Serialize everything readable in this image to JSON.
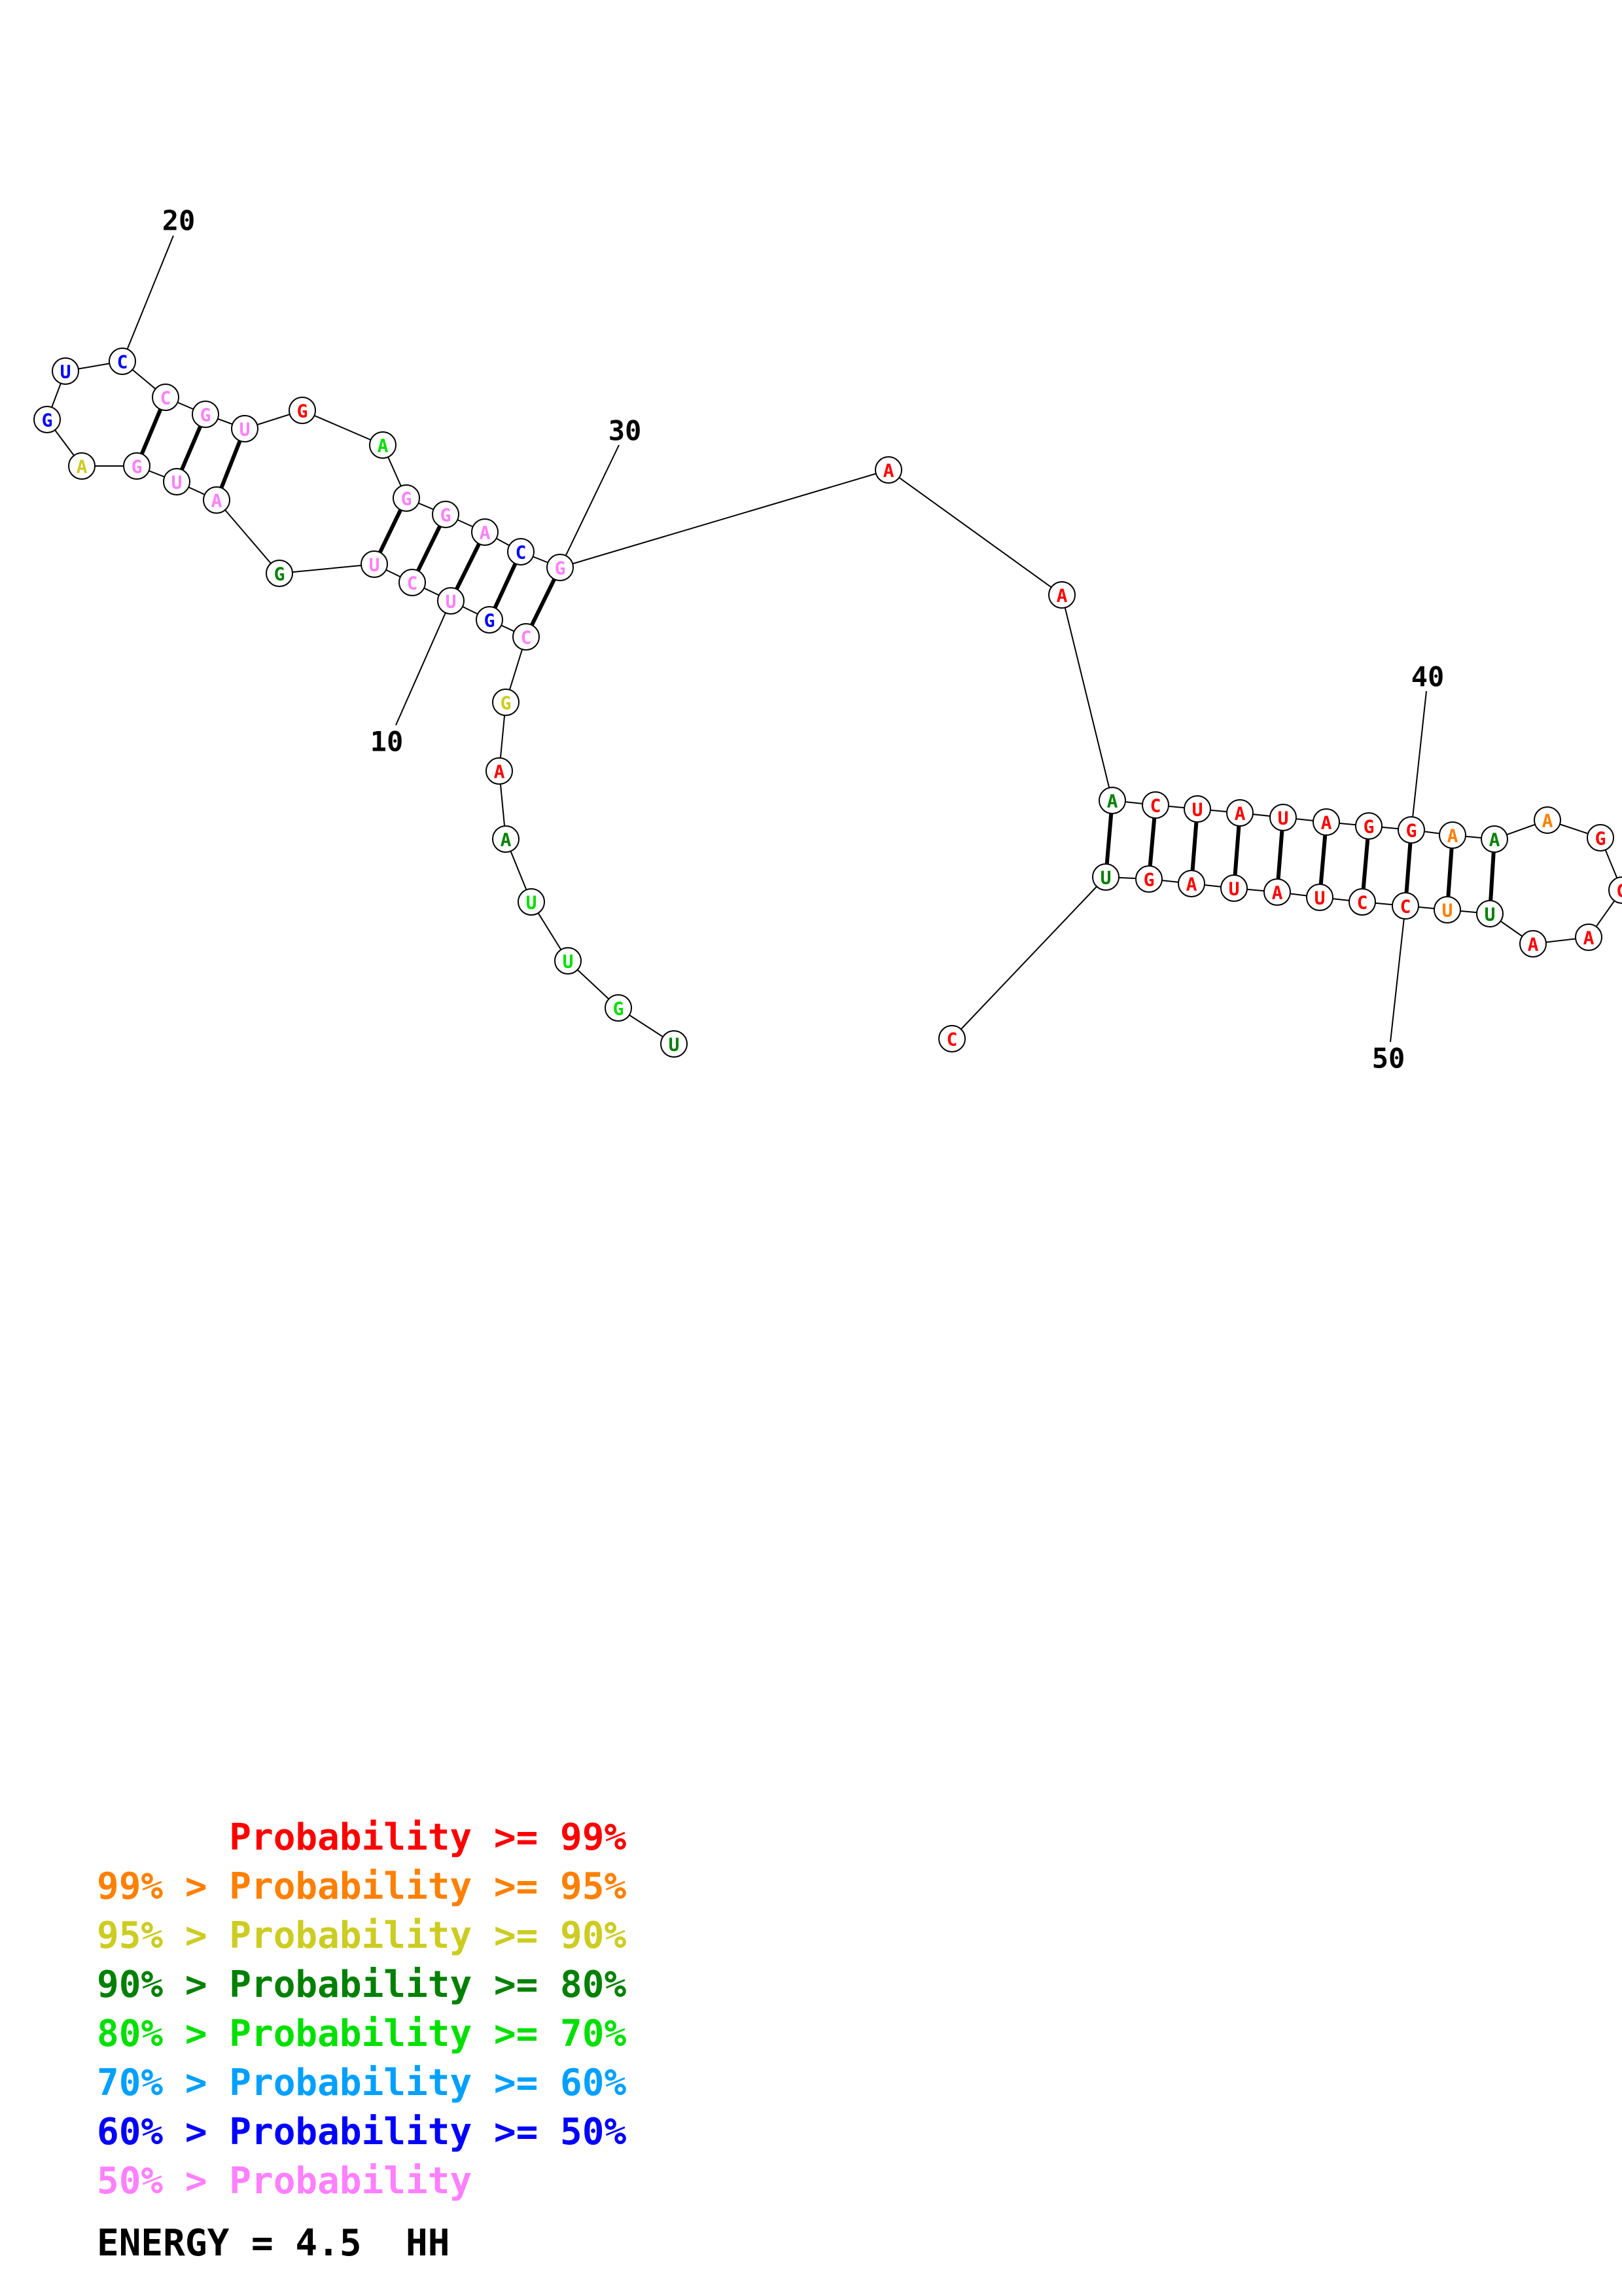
{
  "colors": {
    "red": "#ff0000",
    "orange": "#ff8000",
    "yellow": "#cccc22",
    "darkgreen": "#008000",
    "green": "#00e000",
    "cyan": "#00a0ff",
    "blue": "#0000ff",
    "pink": "#ff80ff"
  },
  "nucleotides": [
    {
      "n": 1,
      "base": "U",
      "color": "darkgreen"
    },
    {
      "n": 2,
      "base": "G",
      "color": "green"
    },
    {
      "n": 3,
      "base": "U",
      "color": "green"
    },
    {
      "n": 4,
      "base": "U",
      "color": "green"
    },
    {
      "n": 5,
      "base": "A",
      "color": "darkgreen"
    },
    {
      "n": 6,
      "base": "A",
      "color": "red"
    },
    {
      "n": 7,
      "base": "G",
      "color": "yellow"
    },
    {
      "n": 8,
      "base": "C",
      "color": "pink"
    },
    {
      "n": 9,
      "base": "G",
      "color": "blue"
    },
    {
      "n": 10,
      "base": "U",
      "color": "pink"
    },
    {
      "n": 11,
      "base": "C",
      "color": "pink"
    },
    {
      "n": 12,
      "base": "U",
      "color": "pink"
    },
    {
      "n": 13,
      "base": "G",
      "color": "darkgreen"
    },
    {
      "n": 14,
      "base": "A",
      "color": "pink"
    },
    {
      "n": 15,
      "base": "U",
      "color": "pink"
    },
    {
      "n": 16,
      "base": "G",
      "color": "pink"
    },
    {
      "n": 17,
      "base": "A",
      "color": "yellow"
    },
    {
      "n": 18,
      "base": "G",
      "color": "blue"
    },
    {
      "n": 19,
      "base": "U",
      "color": "blue"
    },
    {
      "n": 20,
      "base": "C",
      "color": "blue"
    },
    {
      "n": 21,
      "base": "C",
      "color": "pink"
    },
    {
      "n": 22,
      "base": "G",
      "color": "pink"
    },
    {
      "n": 23,
      "base": "U",
      "color": "pink"
    },
    {
      "n": 24,
      "base": "G",
      "color": "red"
    },
    {
      "n": 25,
      "base": "A",
      "color": "green"
    },
    {
      "n": 26,
      "base": "G",
      "color": "pink"
    },
    {
      "n": 27,
      "base": "G",
      "color": "pink"
    },
    {
      "n": 28,
      "base": "A",
      "color": "pink"
    },
    {
      "n": 29,
      "base": "C",
      "color": "blue"
    },
    {
      "n": 30,
      "base": "G",
      "color": "pink"
    },
    {
      "n": 31,
      "base": "A",
      "color": "red"
    },
    {
      "n": 32,
      "base": "A",
      "color": "red"
    },
    {
      "n": 33,
      "base": "A",
      "color": "darkgreen"
    },
    {
      "n": 34,
      "base": "C",
      "color": "red"
    },
    {
      "n": 35,
      "base": "U",
      "color": "red"
    },
    {
      "n": 36,
      "base": "A",
      "color": "red"
    },
    {
      "n": 37,
      "base": "U",
      "color": "red"
    },
    {
      "n": 38,
      "base": "A",
      "color": "red"
    },
    {
      "n": 39,
      "base": "G",
      "color": "red"
    },
    {
      "n": 40,
      "base": "G",
      "color": "red"
    },
    {
      "n": 41,
      "base": "A",
      "color": "orange"
    },
    {
      "n": 42,
      "base": "A",
      "color": "darkgreen"
    },
    {
      "n": 43,
      "base": "A",
      "color": "orange"
    },
    {
      "n": 44,
      "base": "G",
      "color": "red"
    },
    {
      "n": 45,
      "base": "G",
      "color": "red"
    },
    {
      "n": 46,
      "base": "A",
      "color": "red"
    },
    {
      "n": 47,
      "base": "A",
      "color": "red"
    },
    {
      "n": 48,
      "base": "U",
      "color": "darkgreen"
    },
    {
      "n": 49,
      "base": "U",
      "color": "orange"
    },
    {
      "n": 50,
      "base": "C",
      "color": "red"
    },
    {
      "n": 51,
      "base": "C",
      "color": "red"
    },
    {
      "n": 52,
      "base": "U",
      "color": "red"
    },
    {
      "n": 53,
      "base": "A",
      "color": "red"
    },
    {
      "n": 54,
      "base": "U",
      "color": "red"
    },
    {
      "n": 55,
      "base": "A",
      "color": "red"
    },
    {
      "n": 56,
      "base": "G",
      "color": "red"
    },
    {
      "n": 57,
      "base": "U",
      "color": "darkgreen"
    },
    {
      "n": 58,
      "base": "C",
      "color": "red"
    }
  ],
  "base_pairs": [
    [
      8,
      30
    ],
    [
      9,
      29
    ],
    [
      10,
      28
    ],
    [
      11,
      27
    ],
    [
      12,
      26
    ],
    [
      14,
      23
    ],
    [
      15,
      22
    ],
    [
      16,
      21
    ],
    [
      33,
      57
    ],
    [
      34,
      56
    ],
    [
      35,
      55
    ],
    [
      36,
      54
    ],
    [
      37,
      53
    ],
    [
      38,
      52
    ],
    [
      39,
      51
    ],
    [
      40,
      50
    ],
    [
      41,
      49
    ],
    [
      42,
      48
    ]
  ],
  "position_labels": [
    {
      "n": 10,
      "text": "10"
    },
    {
      "n": 20,
      "text": "20"
    },
    {
      "n": 30,
      "text": "30"
    },
    {
      "n": 40,
      "text": "40"
    },
    {
      "n": 50,
      "text": "50"
    }
  ],
  "legend": [
    {
      "text": "      Probability >= 99%",
      "color": "red"
    },
    {
      "text": "99% > Probability >= 95%",
      "color": "orange"
    },
    {
      "text": "95% > Probability >= 90%",
      "color": "yellow"
    },
    {
      "text": "90% > Probability >= 80%",
      "color": "darkgreen"
    },
    {
      "text": "80% > Probability >= 70%",
      "color": "green"
    },
    {
      "text": "70% > Probability >= 60%",
      "color": "cyan"
    },
    {
      "text": "60% > Probability >= 50%",
      "color": "blue"
    },
    {
      "text": "50% > Probability",
      "color": "pink"
    }
  ],
  "energy_label": "ENERGY = 4.5  HH"
}
